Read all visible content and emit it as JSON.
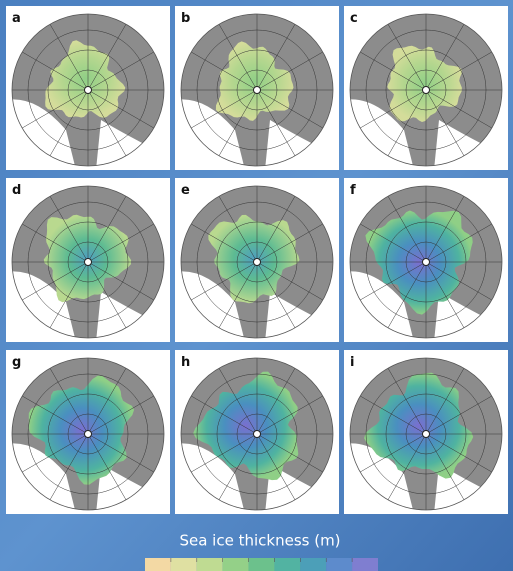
{
  "panels": [
    {
      "label": "a"
    },
    {
      "label": "b"
    },
    {
      "label": "c"
    },
    {
      "label": "d"
    },
    {
      "label": "e"
    },
    {
      "label": "f"
    },
    {
      "label": "g"
    },
    {
      "label": "h"
    },
    {
      "label": "i"
    }
  ],
  "colorbar": {
    "title": "Sea ice thickness (m)"
  }
}
